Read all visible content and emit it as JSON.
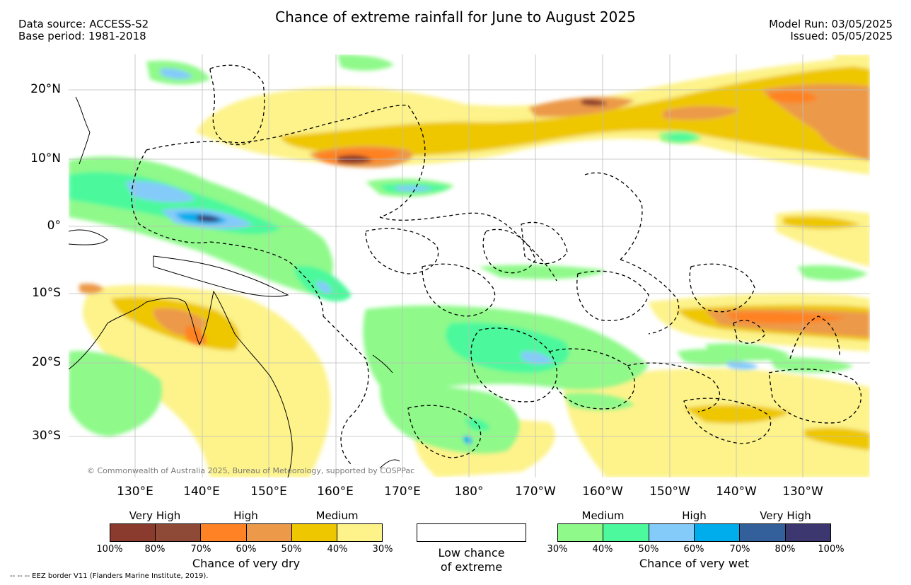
{
  "title": "Chance of extreme rainfall for June to August 2025",
  "data_source": "Data source: ACCESS-S2",
  "base_period": "Base period: 1981-2018",
  "model_run": "Model Run: 03/05/2025",
  "issued": "Issued: 05/05/2025",
  "map": {
    "lat_labels": [
      "20°N",
      "10°N",
      "0°",
      "10°S",
      "20°S",
      "30°S"
    ],
    "lon_labels": [
      "130°E",
      "140°E",
      "150°E",
      "160°E",
      "170°E",
      "180°",
      "170°W",
      "160°W",
      "150°W",
      "140°W",
      "130°W"
    ],
    "copyright": "© Commonwealth of Australia 2025, Bureau of Meteorology, supported by COSPPac",
    "gridlines": true
  },
  "legend": {
    "dry": {
      "title": "Chance of very dry",
      "categories": [
        "Very High",
        "High",
        "Medium"
      ],
      "colors": [
        "#8b3a2e",
        "#8e4a36",
        "#ff8224",
        "#ec9a4a",
        "#eec700",
        "#fdf38a"
      ],
      "ticks": [
        "100%",
        "80%",
        "70%",
        "60%",
        "50%",
        "40%",
        "30%"
      ]
    },
    "low": {
      "label_line1": "Low chance",
      "label_line2": "of extreme",
      "color": "#ffffff"
    },
    "wet": {
      "title": "Chance of very wet",
      "categories": [
        "Medium",
        "High",
        "Very High"
      ],
      "colors": [
        "#8ff98a",
        "#4cf99c",
        "#84cbfa",
        "#00adec",
        "#335f9a",
        "#3d3770"
      ],
      "ticks": [
        "30%",
        "40%",
        "50%",
        "60%",
        "70%",
        "80%",
        "100%"
      ]
    }
  },
  "eez_note": "-- -- -- EEZ border V11 (Flanders Marine Institute, 2019)."
}
